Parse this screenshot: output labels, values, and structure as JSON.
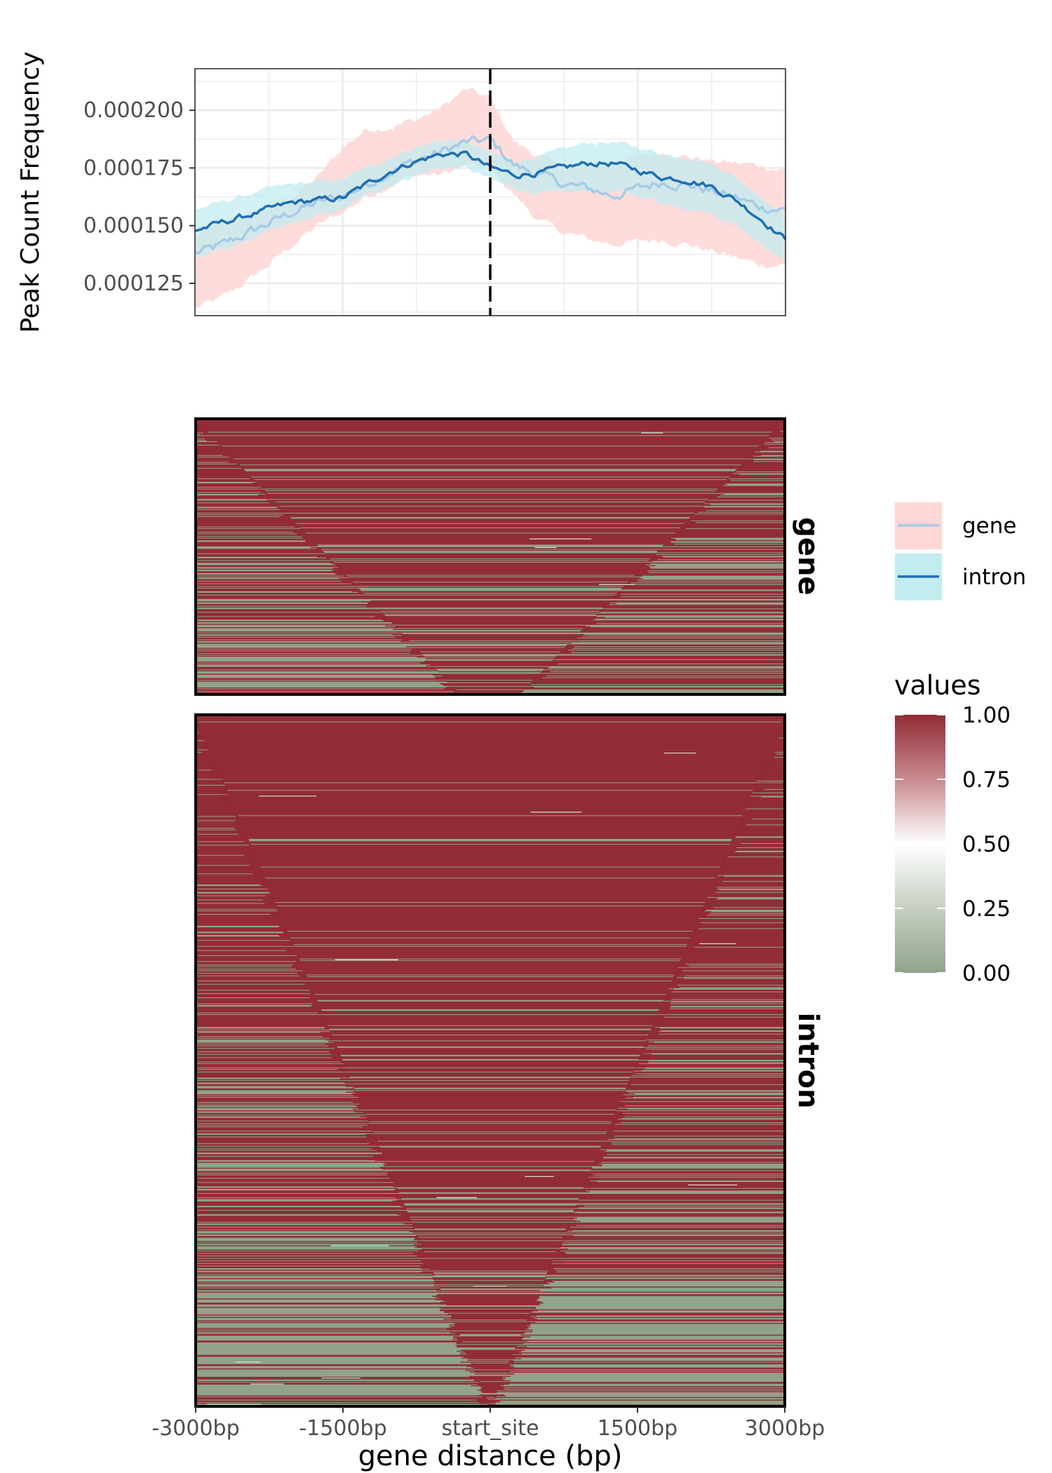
{
  "chart_data": [
    {
      "type": "line",
      "panel": "profile",
      "ylabel": "Peak Count Frequency",
      "xlim": [
        -3000,
        3000
      ],
      "ylim": [
        0.000111,
        0.000218
      ],
      "yticks": [
        0.000125,
        0.00015,
        0.000175,
        0.0002
      ],
      "ytick_labels": [
        "0.000125",
        "0.000150",
        "0.000175",
        "0.000200"
      ],
      "vline_x": 0,
      "grid": true,
      "legend_position": "right",
      "series": [
        {
          "name": "gene",
          "line_color": "#a6cbe6",
          "band_color": "#ffd6d6",
          "x": [
            -3000,
            -2750,
            -2500,
            -2250,
            -2000,
            -1750,
            -1500,
            -1250,
            -1000,
            -750,
            -500,
            -250,
            0,
            250,
            500,
            750,
            1000,
            1250,
            1500,
            1750,
            2000,
            2250,
            2500,
            2750,
            3000
          ],
          "y": [
            0.000138,
            0.000141,
            0.000146,
            0.000151,
            0.000156,
            0.00016,
            0.000163,
            0.000168,
            0.000174,
            0.000178,
            0.000182,
            0.000186,
            0.000187,
            0.000176,
            0.000172,
            0.000168,
            0.000166,
            0.000163,
            0.000166,
            0.000169,
            0.000168,
            0.000165,
            0.000162,
            0.000158,
            0.000157
          ],
          "lower": [
            0.000114,
            0.000118,
            0.000125,
            0.000133,
            0.000142,
            0.00015,
            0.000156,
            0.000163,
            0.000168,
            0.000172,
            0.000172,
            0.000176,
            0.000175,
            0.000163,
            0.000152,
            0.000147,
            0.000144,
            0.000142,
            0.000143,
            0.000144,
            0.000142,
            0.000139,
            0.000136,
            0.000133,
            0.000133
          ],
          "upper": [
            0.000146,
            0.00015,
            0.000154,
            0.000158,
            0.000163,
            0.000171,
            0.000184,
            0.000192,
            0.000193,
            0.000196,
            0.000201,
            0.000209,
            0.000205,
            0.000186,
            0.00018,
            0.000175,
            0.000175,
            0.000177,
            0.00018,
            0.000182,
            0.00018,
            0.000178,
            0.000177,
            0.000176,
            0.000174
          ]
        },
        {
          "name": "intron",
          "line_color": "#1f6fb2",
          "band_color": "#c2ecf0",
          "x": [
            -3000,
            -2750,
            -2500,
            -2250,
            -2000,
            -1750,
            -1500,
            -1250,
            -1000,
            -750,
            -500,
            -250,
            0,
            250,
            500,
            750,
            1000,
            1250,
            1500,
            1750,
            2000,
            2250,
            2500,
            2750,
            3000
          ],
          "y": [
            0.000148,
            0.000151,
            0.000154,
            0.000157,
            0.00016,
            0.000161,
            0.000162,
            0.000168,
            0.000174,
            0.000178,
            0.000181,
            0.000181,
            0.000175,
            0.000172,
            0.000173,
            0.000175,
            0.000177,
            0.000177,
            0.000174,
            0.000171,
            0.00017,
            0.000167,
            0.000161,
            0.000153,
            0.000144
          ],
          "lower": [
            0.000136,
            0.000139,
            0.000143,
            0.000147,
            0.000151,
            0.000154,
            0.000157,
            0.000163,
            0.000168,
            0.000172,
            0.000175,
            0.000175,
            0.00017,
            0.000166,
            0.000164,
            0.000164,
            0.000165,
            0.000165,
            0.000163,
            0.00016,
            0.000158,
            0.000155,
            0.00015,
            0.000143,
            0.000134
          ],
          "upper": [
            0.000157,
            0.00016,
            0.000163,
            0.000166,
            0.000168,
            0.000169,
            0.00017,
            0.000175,
            0.00018,
            0.000184,
            0.000187,
            0.000187,
            0.000181,
            0.000178,
            0.00018,
            0.000183,
            0.000186,
            0.000186,
            0.000184,
            0.000181,
            0.00018,
            0.000177,
            0.000171,
            0.000163,
            0.000154
          ]
        }
      ]
    },
    {
      "type": "heatmap",
      "panel": "gene",
      "strip_label": "gene",
      "rows": 320,
      "xlim": [
        -3000,
        3000
      ]
    },
    {
      "type": "heatmap",
      "panel": "intron",
      "strip_label": "intron",
      "rows": 820,
      "xlim": [
        -3000,
        3000
      ],
      "xticks": [
        -3000,
        -1500,
        0,
        1500,
        3000
      ],
      "xtick_labels": [
        "-3000bp",
        "-1500bp",
        "start_site",
        "1500bp",
        "3000bp"
      ],
      "xlabel": "gene distance (bp)"
    }
  ],
  "legend": {
    "entries": [
      {
        "label": "gene",
        "line_color": "#a6cbe6",
        "band_color": "#ffd6d6"
      },
      {
        "label": "intron",
        "line_color": "#1f6fb2",
        "band_color": "#c2ecf0"
      }
    ]
  },
  "colorbar": {
    "title": "values",
    "range": [
      0,
      1
    ],
    "ticks": [
      1.0,
      0.75,
      0.5,
      0.25,
      0.0
    ],
    "tick_labels": [
      "1.00",
      "0.75",
      "0.50",
      "0.25",
      "0.00"
    ],
    "colors": {
      "low": "#91a38a",
      "mid": "#ffffff",
      "high": "#922b36"
    }
  }
}
